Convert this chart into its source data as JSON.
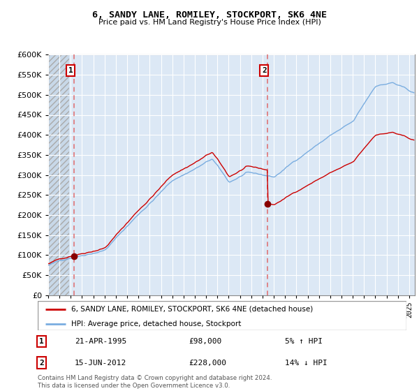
{
  "title_line1": "6, SANDY LANE, ROMILEY, STOCKPORT, SK6 4NE",
  "title_line2": "Price paid vs. HM Land Registry's House Price Index (HPI)",
  "legend_label1": "6, SANDY LANE, ROMILEY, STOCKPORT, SK6 4NE (detached house)",
  "legend_label2": "HPI: Average price, detached house, Stockport",
  "transaction1_date": "21-APR-1995",
  "transaction1_price": "£98,000",
  "transaction1_hpi": "5% ↑ HPI",
  "transaction1_year": 1995.29,
  "transaction1_value": 98000,
  "transaction2_date": "15-JUN-2012",
  "transaction2_price": "£228,000",
  "transaction2_hpi": "14% ↓ HPI",
  "transaction2_year": 2012.45,
  "transaction2_value": 228000,
  "line_color_red": "#cc0000",
  "line_color_blue": "#7aade0",
  "dot_color": "#880000",
  "vline_color": "#e06060",
  "ylim_min": 0,
  "ylim_max": 600000,
  "ytick_step": 50000,
  "xlim_min": 1993.0,
  "xlim_max": 2025.5,
  "hatch_end_year": 1994.83,
  "plot_bg_color": "#dce8f5",
  "grid_color": "#ffffff",
  "copyright_text": "Contains HM Land Registry data © Crown copyright and database right 2024.\nThis data is licensed under the Open Government Licence v3.0."
}
